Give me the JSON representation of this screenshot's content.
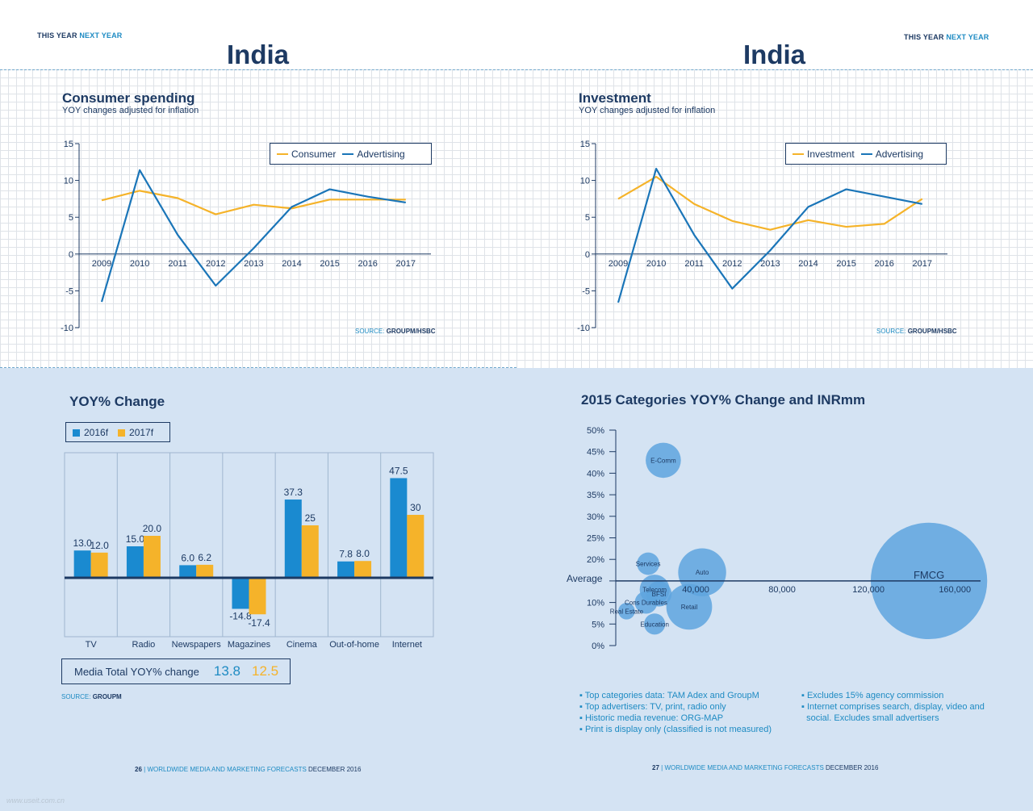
{
  "header": {
    "left_this_year": "THIS YEAR",
    "left_next_year": "NEXT YEAR",
    "right_this_year": "THIS YEAR",
    "right_next_year": "NEXT YEAR",
    "left_country": "India",
    "right_country": "India"
  },
  "colors": {
    "blue": "#1a75b8",
    "orange": "#f5b32a",
    "navy": "#1d3a63",
    "bubble": "#5ea5de"
  },
  "footer": {
    "left_page": "26",
    "left_text": "WORLDWIDE MEDIA AND MARKETING FORECASTS",
    "left_date": "DECEMBER 2016",
    "right_page": "27",
    "right_text": "WORLDWIDE MEDIA AND MARKETING FORECASTS",
    "right_date": "DECEMBER 2016",
    "watermark": "www.useit.com.cn"
  },
  "notes": {
    "left": [
      "Top categories data: TAM Adex and GroupM",
      "Top advertisers: TV, print, radio only",
      "Historic media revenue: ORG-MAP",
      "Print is display only (classified is not measured)"
    ],
    "right": [
      "Excludes 15% agency commission",
      "Internet comprises search, display, video and",
      "social. Excludes small advertisers"
    ]
  },
  "chart_data": [
    {
      "type": "line",
      "title": "Consumer spending",
      "subtitle": "YOY changes adjusted for inflation",
      "x": [
        "2009",
        "2010",
        "2011",
        "2012",
        "2013",
        "2014",
        "2015",
        "2016",
        "2017"
      ],
      "series": [
        {
          "name": "Consumer",
          "values": [
            7.3,
            8.6,
            7.6,
            5.4,
            6.7,
            6.2,
            7.4,
            7.4,
            7.4
          ]
        },
        {
          "name": "Advertising",
          "values": [
            -6.5,
            11.4,
            2.6,
            -4.3,
            0.8,
            6.4,
            8.8,
            7.8,
            7.0
          ]
        }
      ],
      "ylim": [
        -10,
        15
      ],
      "yticks": [
        "15",
        "10",
        "5",
        "0",
        "-5",
        "-10"
      ],
      "legend": "top-right",
      "source_label": "SOURCE:",
      "source": "GROUPM/HSBC"
    },
    {
      "type": "line",
      "title": "Investment",
      "subtitle": "YOY changes adjusted for inflation",
      "x": [
        "2009",
        "2010",
        "2011",
        "2012",
        "2013",
        "2014",
        "2015",
        "2016",
        "2017"
      ],
      "series": [
        {
          "name": "Investment",
          "values": [
            7.5,
            10.5,
            6.8,
            4.5,
            3.3,
            4.6,
            3.7,
            4.1,
            7.5
          ]
        },
        {
          "name": "Advertising",
          "values": [
            -6.6,
            11.6,
            2.6,
            -4.7,
            0.5,
            6.4,
            8.8,
            7.8,
            6.8
          ]
        }
      ],
      "ylim": [
        -10,
        15
      ],
      "yticks": [
        "15",
        "10",
        "5",
        "0",
        "-5",
        "-10"
      ],
      "legend": "top-right",
      "source_label": "SOURCE:",
      "source": "GROUPM/HSBC"
    },
    {
      "type": "bar",
      "title": "YOY% Change",
      "categories": [
        "TV",
        "Radio",
        "Newspapers",
        "Magazines",
        "Cinema",
        "Out-of-home",
        "Internet"
      ],
      "series": [
        {
          "name": "2016f",
          "values": [
            13.0,
            15.0,
            6.0,
            -14.8,
            37.3,
            7.8,
            47.5
          ],
          "labels": [
            "13.0",
            "15.0",
            "6.0",
            "-14.8",
            "37.3",
            "7.8",
            "47.5"
          ]
        },
        {
          "name": "2017f",
          "values": [
            12.0,
            20.0,
            6.2,
            -17.4,
            25,
            8.0,
            30
          ],
          "labels": [
            "12.0",
            "20.0",
            "6.2",
            "-17.4",
            "25",
            "8.0",
            "30"
          ]
        }
      ],
      "legend": "top-left",
      "total_label": "Media Total YOY% change",
      "total_2016": "13.8",
      "total_2017": "12.5",
      "source_label": "SOURCE:",
      "source": "GROUPM"
    },
    {
      "type": "scatter",
      "title": "2015 Categories YOY% Change and INRmm",
      "yticks": [
        "50%",
        "45%",
        "40%",
        "35%",
        "30%",
        "25%",
        "20%",
        "15%",
        "10%",
        "5%",
        "0%"
      ],
      "xticks": [
        "40,000",
        "80,000",
        "120,000",
        "160,000"
      ],
      "average_label": "Average",
      "average_value": 15,
      "ylim": [
        0,
        50
      ],
      "xlim": [
        0,
        170000
      ],
      "points": [
        {
          "label": "E-Comm",
          "x": 22000,
          "y": 43,
          "size": 4000
        },
        {
          "label": "Services",
          "x": 15000,
          "y": 19,
          "size": 1000
        },
        {
          "label": "Auto",
          "x": 40000,
          "y": 17,
          "size": 9000
        },
        {
          "label": "Telecom",
          "x": 18000,
          "y": 13,
          "size": 2500
        },
        {
          "label": "BFSI",
          "x": 20000,
          "y": 12,
          "size": 1500
        },
        {
          "label": "Cons Durables",
          "x": 14000,
          "y": 10,
          "size": 1000
        },
        {
          "label": "Retail",
          "x": 34000,
          "y": 9,
          "size": 8000
        },
        {
          "label": "Real Estate",
          "x": 5000,
          "y": 8,
          "size": 300
        },
        {
          "label": "Education",
          "x": 18000,
          "y": 5,
          "size": 800
        },
        {
          "label": "FMCG",
          "x": 145000,
          "y": 15,
          "size": 70000
        }
      ]
    }
  ]
}
